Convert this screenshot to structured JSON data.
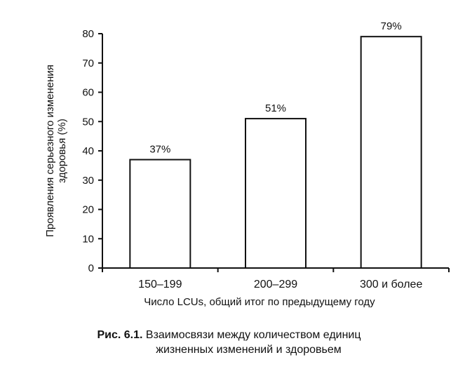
{
  "chart_data": {
    "type": "bar",
    "categories": [
      "150–199",
      "200–299",
      "300 и более"
    ],
    "values": [
      37,
      51,
      79
    ],
    "data_labels": [
      "37%",
      "51%",
      "79%"
    ],
    "ylabel_lines": [
      "Проявления серьезного изменения",
      "здоровья (%)"
    ],
    "xlabel": "Число LCUs, общий итог по предыдущему году",
    "ylim": [
      0,
      80
    ],
    "yticks": [
      0,
      10,
      20,
      30,
      40,
      50,
      60,
      70,
      80
    ],
    "grid": false,
    "colors": {
      "bar_fill": "#ffffff",
      "bar_stroke": "#111111",
      "axis": "#111111"
    }
  },
  "caption": {
    "label": "Рис. 6.1.",
    "line1": "Взаимосвязи между количеством единиц",
    "line2": "жизненных изменений и здоровьем"
  }
}
